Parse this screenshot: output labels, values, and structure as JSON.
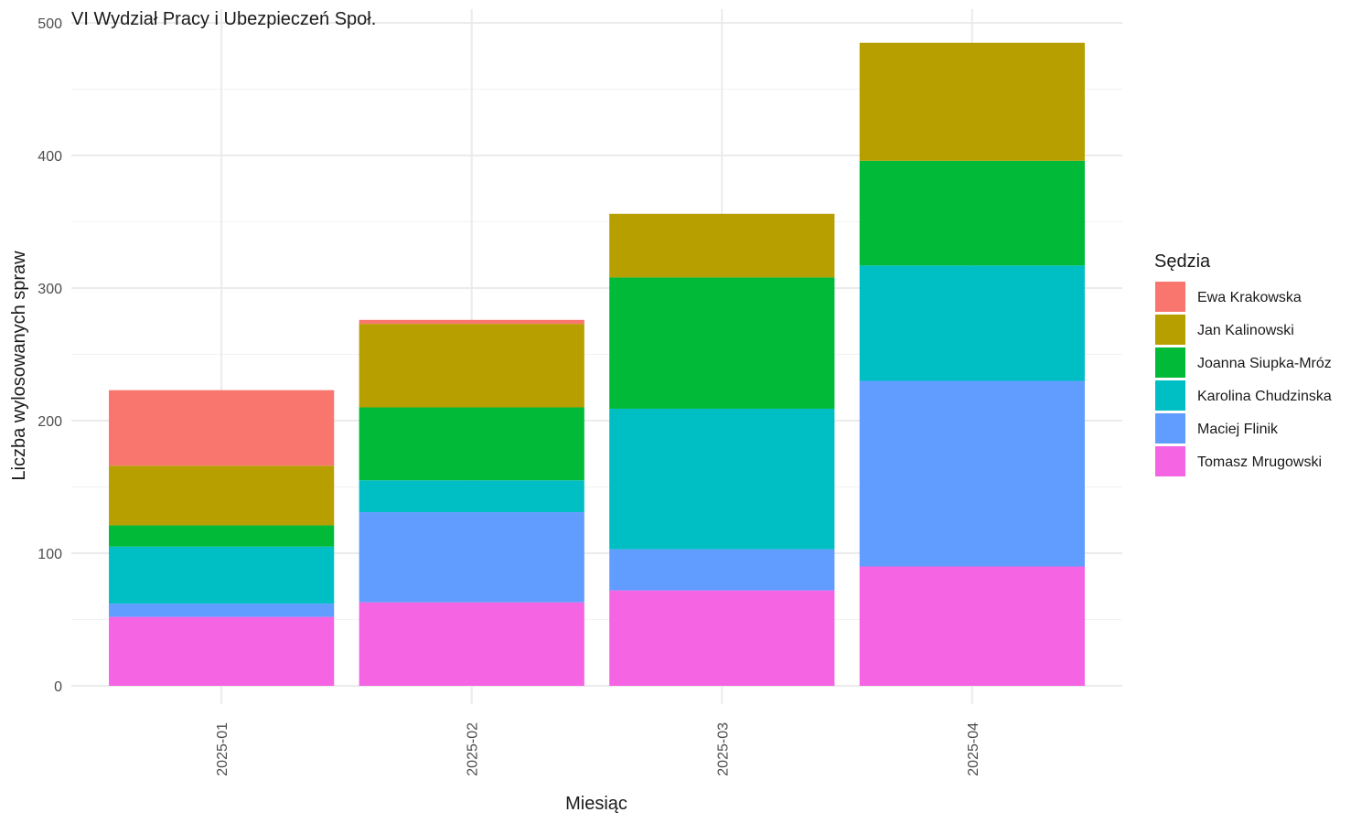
{
  "chart_data": {
    "type": "bar",
    "stacked": true,
    "title": "VI Wydział Pracy i Ubezpieczeń Społ.",
    "xlabel": "Miesiąc",
    "ylabel": "Liczba wylosowanych spraw",
    "ylim": [
      0,
      500
    ],
    "yticks": [
      0,
      100,
      200,
      300,
      400,
      500
    ],
    "grid": true,
    "legend_title": "Sędzia",
    "legend_position": "right",
    "categories": [
      "2025-01",
      "2025-02",
      "2025-03",
      "2025-04"
    ],
    "series": [
      {
        "name": "Ewa Krakowska",
        "color": "#F8766D",
        "values": [
          57,
          3,
          0,
          0
        ]
      },
      {
        "name": "Jan Kalinowski",
        "color": "#B79F00",
        "values": [
          45,
          63,
          48,
          89
        ]
      },
      {
        "name": "Joanna Siupka-Mróz",
        "color": "#00BA38",
        "values": [
          16,
          55,
          99,
          79
        ]
      },
      {
        "name": "Karolina Chudzinska",
        "color": "#00BFC4",
        "values": [
          43,
          24,
          106,
          87
        ]
      },
      {
        "name": "Maciej Flinik",
        "color": "#619CFF",
        "values": [
          10,
          68,
          31,
          140
        ]
      },
      {
        "name": "Tomasz Mrugowski",
        "color": "#F564E3",
        "values": [
          52,
          63,
          72,
          90
        ]
      }
    ]
  }
}
